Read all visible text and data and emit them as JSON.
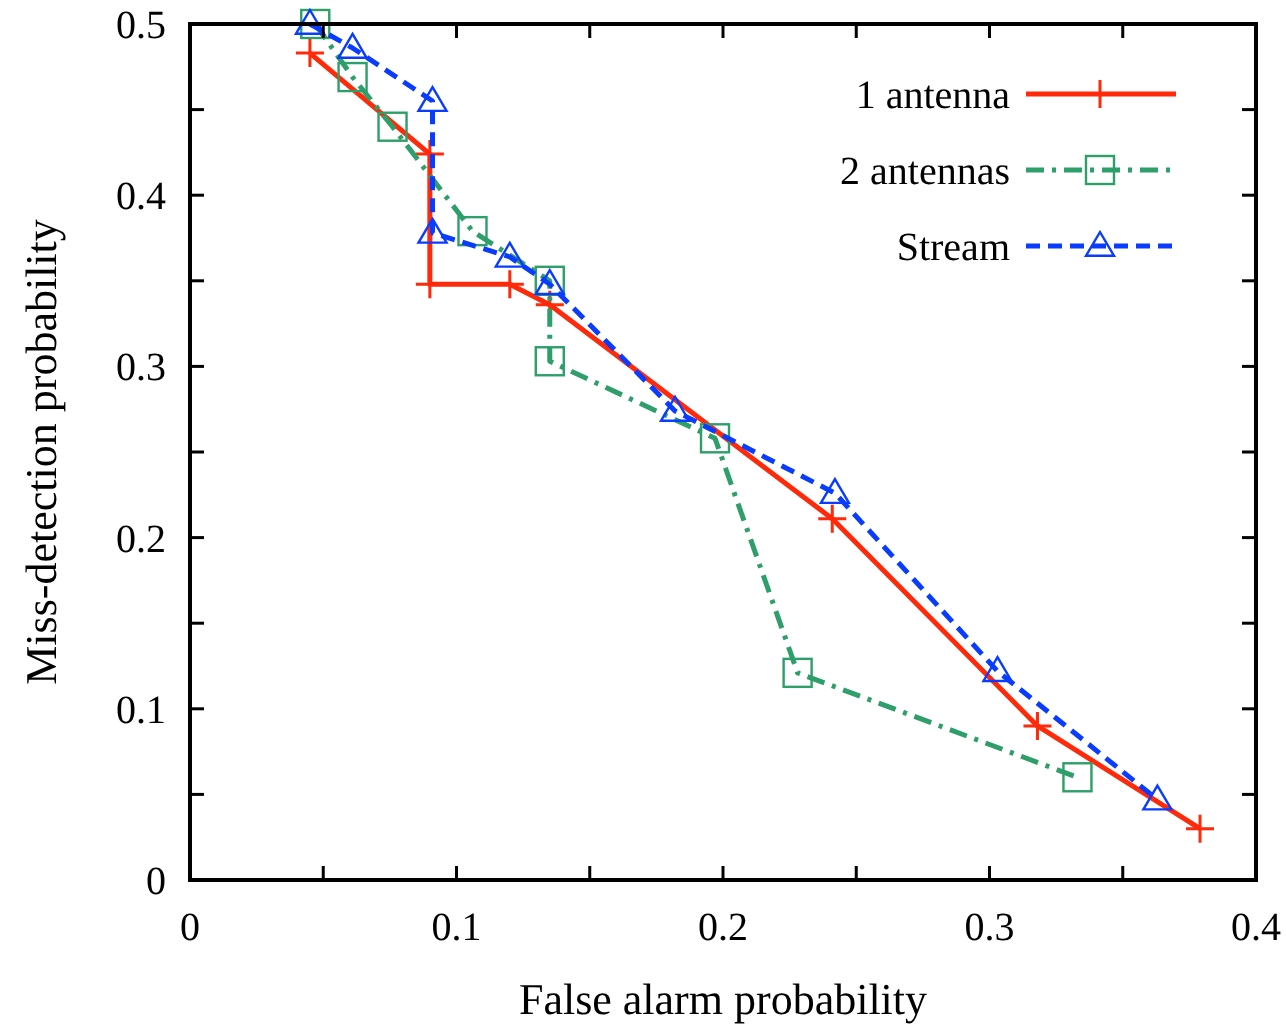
{
  "chart_data": {
    "type": "line",
    "xlabel": "False alarm probability",
    "ylabel": "Miss-detection probability",
    "xlim": [
      0,
      0.4
    ],
    "ylim": [
      0,
      0.5
    ],
    "xticks": [
      0,
      {
        "value": 0.05,
        "label": null
      },
      0.1,
      {
        "value": 0.15,
        "label": null
      },
      0.2,
      {
        "value": 0.25,
        "label": null
      },
      0.3,
      {
        "value": 0.35,
        "label": null
      },
      0.4
    ],
    "yticks": [
      0,
      {
        "value": 0.05,
        "label": null
      },
      0.1,
      {
        "value": 0.15,
        "label": null
      },
      0.2,
      {
        "value": 0.25,
        "label": null
      },
      0.3,
      {
        "value": 0.35,
        "label": null
      },
      0.4,
      {
        "value": 0.45,
        "label": null
      },
      0.5
    ],
    "grid": false,
    "legend": "top right",
    "series": [
      {
        "name": "1 antenna",
        "color": "#ff2a0a",
        "marker": "cross",
        "line_style": "solid",
        "x": [
          0.045,
          0.09,
          0.09,
          0.12,
          0.135,
          0.241,
          0.318,
          0.379
        ],
        "values": [
          0.483,
          0.424,
          0.348,
          0.348,
          0.336,
          0.211,
          0.09,
          0.03
        ]
      },
      {
        "name": "2 antennas",
        "color": "#2e9e6a",
        "marker": "square",
        "line_style": "dashdot",
        "x": [
          0.047,
          0.061,
          0.076,
          0.106,
          0.135,
          0.135,
          0.197,
          0.228,
          0.333
        ],
        "values": [
          0.5,
          0.469,
          0.44,
          0.379,
          0.35,
          0.303,
          0.258,
          0.121,
          0.06
        ]
      },
      {
        "name": "Stream",
        "color": "#0a3cff",
        "marker": "triangle",
        "line_style": "dashed",
        "x": [
          0.045,
          0.061,
          0.091,
          0.091,
          0.12,
          0.135,
          0.182,
          0.242,
          0.303,
          0.363
        ],
        "values": [
          0.5,
          0.486,
          0.455,
          0.378,
          0.364,
          0.348,
          0.274,
          0.226,
          0.122,
          0.047
        ]
      }
    ]
  }
}
